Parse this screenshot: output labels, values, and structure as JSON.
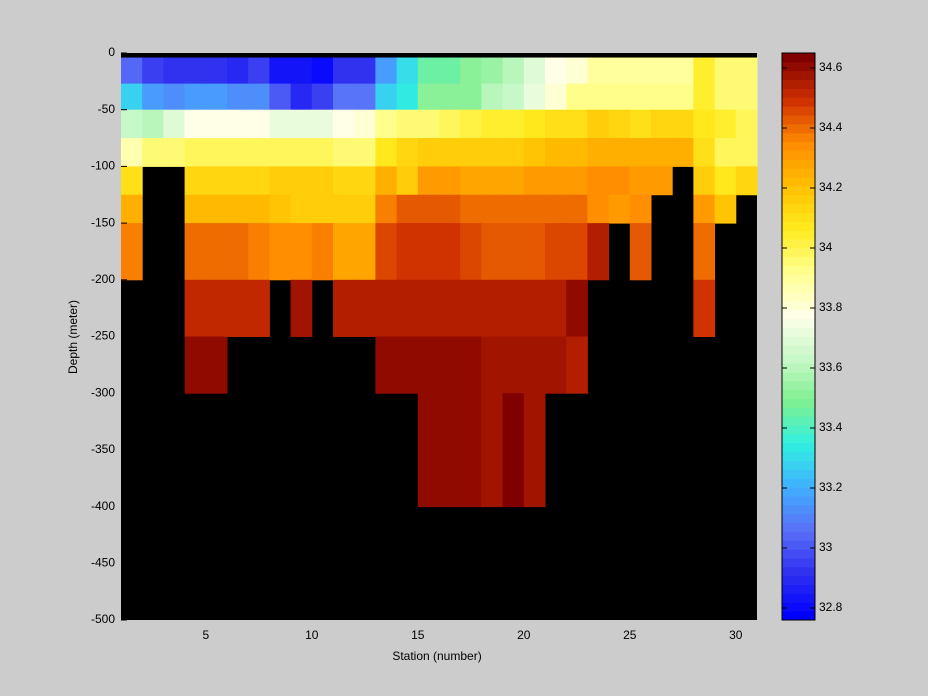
{
  "chart_data": {
    "type": "heatmap",
    "x_label": "Station (number)",
    "y_label": "Depth (meter)",
    "xlim": [
      1,
      31
    ],
    "ylim": [
      -500,
      0
    ],
    "xticks": [
      5,
      10,
      15,
      20,
      25,
      30
    ],
    "yticks": [
      0,
      -50,
      -100,
      -150,
      -200,
      -250,
      -300,
      -350,
      -400,
      -450,
      -500
    ],
    "x_edges": [
      1,
      2,
      3,
      4,
      5,
      6,
      7,
      8,
      9,
      10,
      11,
      12,
      13,
      14,
      15,
      16,
      17,
      18,
      19,
      20,
      21,
      22,
      23,
      24,
      25,
      26,
      27,
      28,
      29,
      30,
      31
    ],
    "y_edges": [
      -4,
      -27,
      -50,
      -75,
      -100,
      -125,
      -150,
      -200,
      -250,
      -300,
      -400
    ],
    "z": [
      [
        33.05,
        32.95,
        32.92,
        32.92,
        32.92,
        32.88,
        32.95,
        32.83,
        32.82,
        32.8,
        32.92,
        32.92,
        33.15,
        33.3,
        33.45,
        33.45,
        33.5,
        33.55,
        33.6,
        33.68,
        33.78,
        33.82,
        33.9,
        33.9,
        33.9,
        33.9,
        33.9,
        34.05,
        33.95,
        33.95
      ],
      [
        33.28,
        33.15,
        33.12,
        33.15,
        33.15,
        33.12,
        33.12,
        33.0,
        32.9,
        32.95,
        33.08,
        33.08,
        33.28,
        33.35,
        33.5,
        33.5,
        33.5,
        33.6,
        33.63,
        33.72,
        33.82,
        33.92,
        33.92,
        33.92,
        33.92,
        33.92,
        33.92,
        34.05,
        33.95,
        33.95
      ],
      [
        33.62,
        33.6,
        33.7,
        33.78,
        33.78,
        33.78,
        33.78,
        33.72,
        33.72,
        33.72,
        33.78,
        33.8,
        33.92,
        33.95,
        33.95,
        34.0,
        34.02,
        34.05,
        34.05,
        34.08,
        34.1,
        34.1,
        34.15,
        34.13,
        34.1,
        34.13,
        34.13,
        34.08,
        34.05,
        34.0
      ],
      [
        33.88,
        33.95,
        33.95,
        34.0,
        34.0,
        34.0,
        34.0,
        34.0,
        34.0,
        34.0,
        33.97,
        33.97,
        34.08,
        34.13,
        34.15,
        34.15,
        34.17,
        34.17,
        34.17,
        34.2,
        34.22,
        34.22,
        34.25,
        34.25,
        34.25,
        34.25,
        34.25,
        34.1,
        34.0,
        34.0
      ],
      [
        34.1,
        null,
        null,
        34.13,
        34.13,
        34.13,
        34.13,
        34.17,
        34.15,
        34.15,
        34.12,
        34.12,
        34.25,
        34.17,
        34.3,
        34.32,
        34.28,
        34.28,
        34.28,
        34.3,
        34.32,
        34.32,
        34.35,
        34.35,
        34.32,
        34.32,
        null,
        34.15,
        34.08,
        34.12
      ],
      [
        34.25,
        null,
        null,
        34.22,
        34.22,
        34.22,
        34.22,
        34.2,
        34.17,
        34.17,
        34.17,
        34.17,
        34.38,
        34.43,
        34.43,
        34.43,
        34.4,
        34.4,
        34.4,
        34.4,
        34.4,
        34.4,
        34.35,
        34.3,
        34.35,
        null,
        null,
        34.3,
        34.2,
        null
      ],
      [
        34.38,
        null,
        null,
        34.4,
        34.4,
        34.4,
        34.36,
        34.33,
        34.33,
        34.38,
        34.27,
        34.27,
        34.47,
        34.5,
        34.5,
        34.5,
        34.45,
        34.43,
        34.43,
        34.43,
        34.47,
        34.47,
        34.55,
        null,
        34.42,
        null,
        null,
        34.4,
        null,
        null
      ],
      [
        null,
        null,
        null,
        34.53,
        34.53,
        34.53,
        34.53,
        null,
        34.57,
        null,
        34.54,
        34.54,
        34.54,
        34.54,
        34.54,
        34.54,
        34.54,
        34.54,
        34.54,
        34.54,
        34.54,
        34.6,
        null,
        null,
        null,
        null,
        null,
        34.48,
        null,
        null
      ],
      [
        null,
        null,
        null,
        34.6,
        34.6,
        null,
        null,
        null,
        null,
        null,
        null,
        null,
        34.62,
        34.62,
        34.62,
        34.62,
        34.62,
        34.57,
        34.57,
        34.57,
        34.57,
        34.54,
        null,
        null,
        null,
        null,
        null,
        null,
        null,
        null
      ],
      [
        null,
        null,
        null,
        null,
        null,
        null,
        null,
        null,
        null,
        null,
        null,
        null,
        null,
        null,
        34.62,
        34.62,
        34.62,
        34.57,
        34.63,
        34.57,
        null,
        null,
        null,
        null,
        null,
        null,
        null,
        null,
        null,
        null
      ]
    ],
    "clim": [
      32.76,
      34.65
    ],
    "colorbar_ticks": [
      32.8,
      33,
      33.2,
      33.4,
      33.6,
      33.8,
      34,
      34.2,
      34.4,
      34.6
    ],
    "colormap": [
      "#0000ff",
      "#3030f0",
      "#5a70f8",
      "#40b0ff",
      "#30f0e0",
      "#80f090",
      "#c8f8c8",
      "#ffffe8",
      "#ffff90",
      "#ffec20",
      "#ffc000",
      "#ff8c00",
      "#d03000",
      "#800000"
    ],
    "colormap_levels": 64,
    "nan_color": "#000000"
  }
}
